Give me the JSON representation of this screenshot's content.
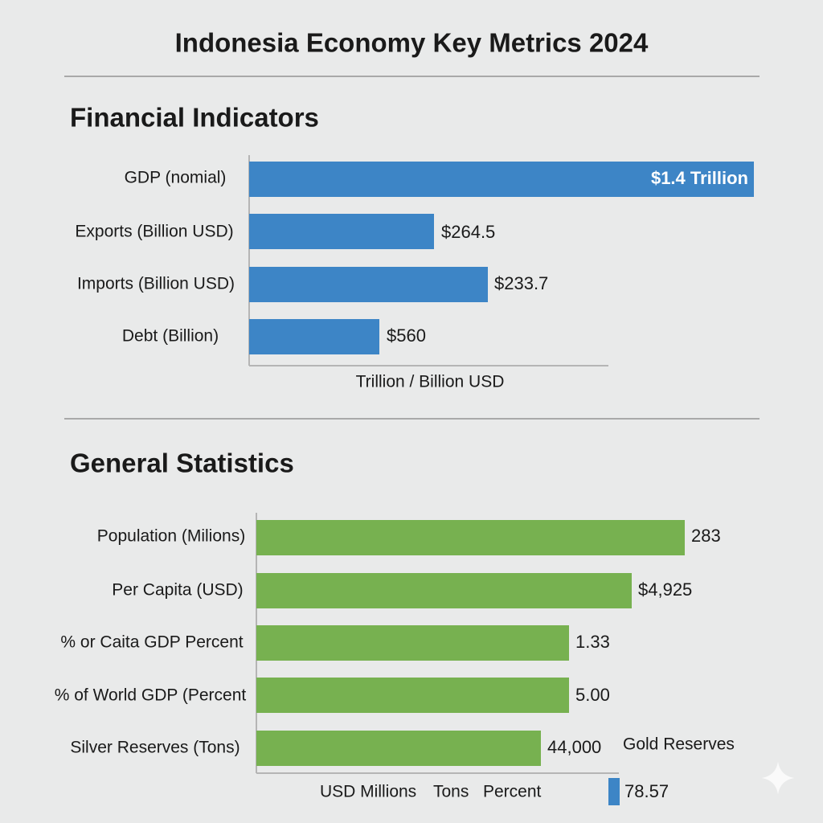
{
  "title": "Indonesia Economy Key Metrics 2024",
  "financial": {
    "heading": "Financial Indicators",
    "rows": [
      {
        "label": "GDP (nomial)",
        "value": "$1.4 Trillion"
      },
      {
        "label": "Exports (Billion USD)",
        "value": "$264.5"
      },
      {
        "label": "Imports (Billion USD)",
        "value": "$233.7"
      },
      {
        "label": "Debt (Billion)",
        "value": "$560"
      }
    ],
    "axis_label": "Trillion / Billion USD"
  },
  "general": {
    "heading": "General Statistics",
    "rows": [
      {
        "label": "Population (Milions)",
        "value": "283"
      },
      {
        "label": "Per Capita (USD)",
        "value": "$4,925"
      },
      {
        "label": "% or Caita GDP Percent",
        "value": "1.33"
      },
      {
        "label": "% of World GDP (Percent",
        "value": "5.00"
      },
      {
        "label": "Silver Reserves (Tons)",
        "value": "44,000"
      }
    ],
    "axis_labels": [
      "USD Millions",
      "Tons",
      "Percent"
    ]
  },
  "gold": {
    "label": "Gold Reserves",
    "value": "78.57"
  }
}
